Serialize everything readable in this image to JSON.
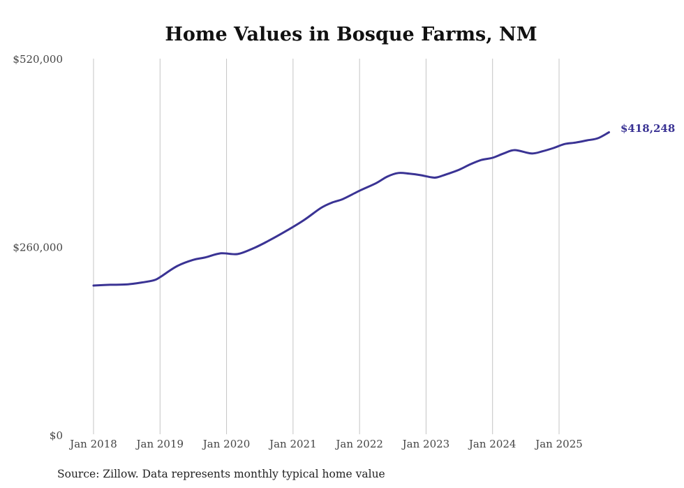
{
  "chart_data": {
    "type": "line",
    "title": "Home Values in Bosque Farms, NM",
    "xlabel": "",
    "ylabel": "",
    "ylim": [
      0,
      520000
    ],
    "yticks": [
      {
        "value": 0,
        "label": "$0"
      },
      {
        "value": 260000,
        "label": "$260,000"
      },
      {
        "value": 520000,
        "label": "$520,000"
      }
    ],
    "xticks": [
      {
        "month": 0,
        "label": "Jan 2018"
      },
      {
        "month": 12,
        "label": "Jan 2019"
      },
      {
        "month": 24,
        "label": "Jan 2020"
      },
      {
        "month": 36,
        "label": "Jan 2021"
      },
      {
        "month": 48,
        "label": "Jan 2022"
      },
      {
        "month": 60,
        "label": "Jan 2023"
      },
      {
        "month": 72,
        "label": "Jan 2024"
      },
      {
        "month": 84,
        "label": "Jan 2025"
      }
    ],
    "x_unit": "months since Jan 2018",
    "grid": "vertical",
    "series": [
      {
        "name": "Typical home value",
        "color": "#3a3394",
        "points": [
          [
            0,
            206500
          ],
          [
            3,
            207500
          ],
          [
            6,
            208000
          ],
          [
            9,
            211000
          ],
          [
            11,
            214000
          ],
          [
            12,
            218000
          ],
          [
            15,
            233000
          ],
          [
            18,
            242000
          ],
          [
            20,
            245000
          ],
          [
            23,
            251000
          ],
          [
            26,
            250000
          ],
          [
            29,
            258500
          ],
          [
            32,
            270000
          ],
          [
            35,
            283000
          ],
          [
            38,
            297000
          ],
          [
            41,
            313500
          ],
          [
            43,
            321000
          ],
          [
            45,
            326000
          ],
          [
            48,
            337500
          ],
          [
            51,
            348000
          ],
          [
            53,
            357000
          ],
          [
            55,
            362000
          ],
          [
            57,
            361000
          ],
          [
            59,
            359000
          ],
          [
            61,
            356000
          ],
          [
            62,
            356000
          ],
          [
            64,
            361000
          ],
          [
            66,
            366600
          ],
          [
            68,
            374000
          ],
          [
            70,
            380000
          ],
          [
            72,
            383000
          ],
          [
            74,
            389000
          ],
          [
            76,
            393600
          ],
          [
            79,
            389000
          ],
          [
            81,
            392000
          ],
          [
            83,
            396500
          ],
          [
            85,
            402000
          ],
          [
            87,
            404000
          ],
          [
            89,
            407000
          ],
          [
            91,
            410000
          ],
          [
            93,
            418248
          ]
        ]
      }
    ],
    "end_label": "$418,248",
    "source": "Source: Zillow. Data represents monthly typical home value"
  }
}
